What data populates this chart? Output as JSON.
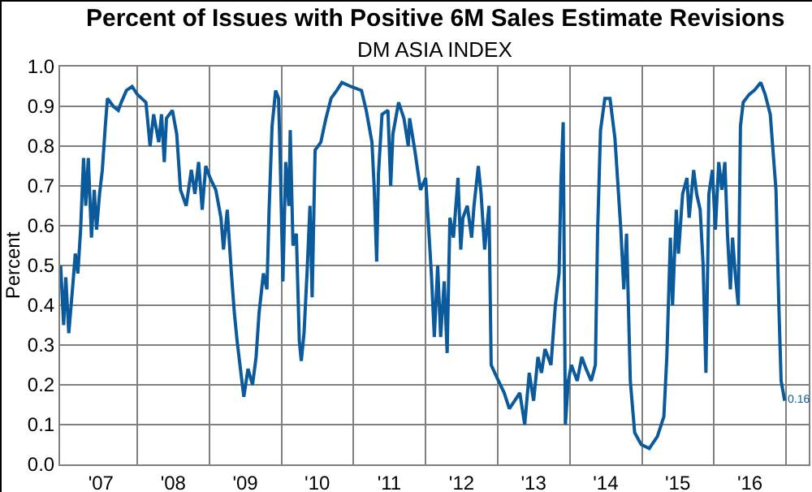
{
  "chart_data": {
    "type": "line",
    "title": "Percent of Issues with Positive 6M Sales Estimate Revisions",
    "subtitle": "DM ASIA INDEX",
    "ylabel": "Percent",
    "x": [
      "2006-12-09",
      "2006-12-24",
      "2007-01-04",
      "2007-01-19",
      "2007-02-10",
      "2007-02-21",
      "2007-03-06",
      "2007-03-20",
      "2007-04-04",
      "2007-04-15",
      "2007-04-28",
      "2007-05-14",
      "2007-05-28",
      "2007-06-09",
      "2007-06-24",
      "2007-07-08",
      "2007-07-23",
      "2007-08-03",
      "2007-09-02",
      "2007-09-27",
      "2007-10-12",
      "2007-11-07",
      "2007-12-06",
      "2008-01-01",
      "2008-02-14",
      "2008-03-06",
      "2008-03-24",
      "2008-04-19",
      "2008-05-03",
      "2008-05-17",
      "2008-05-28",
      "2008-06-27",
      "2008-07-19",
      "2008-08-07",
      "2008-09-05",
      "2008-10-01",
      "2008-10-19",
      "2008-11-07",
      "2008-11-25",
      "2008-12-13",
      "2009-01-04",
      "2009-02-02",
      "2009-02-28",
      "2009-03-13",
      "2009-04-01",
      "2009-04-22",
      "2009-05-07",
      "2009-05-21",
      "2009-06-09",
      "2009-06-24",
      "2009-07-15",
      "2009-08-07",
      "2009-08-25",
      "2009-09-09",
      "2009-10-01",
      "2009-10-19",
      "2009-10-30",
      "2009-11-14",
      "2009-12-02",
      "2009-12-17",
      "2009-12-24",
      "2010-01-08",
      "2010-01-22",
      "2010-02-07",
      "2010-02-14",
      "2010-02-28",
      "2010-03-17",
      "2010-04-01",
      "2010-04-11",
      "2010-04-25",
      "2010-05-10",
      "2010-05-25",
      "2010-06-05",
      "2010-06-20",
      "2010-07-19",
      "2010-08-14",
      "2010-09-09",
      "2010-10-08",
      "2010-11-03",
      "2010-12-17",
      "2011-02-10",
      "2011-03-06",
      "2011-04-04",
      "2011-04-15",
      "2011-04-28",
      "2011-05-07",
      "2011-05-25",
      "2011-06-24",
      "2011-07-08",
      "2011-07-19",
      "2011-08-17",
      "2011-09-13",
      "2011-10-05",
      "2011-10-12",
      "2011-11-07",
      "2011-12-06",
      "2012-01-01",
      "2012-01-30",
      "2012-02-14",
      "2012-03-02",
      "2012-03-17",
      "2012-04-04",
      "2012-04-19",
      "2012-05-03",
      "2012-05-21",
      "2012-06-13",
      "2012-06-27",
      "2012-07-08",
      "2012-07-30",
      "2012-08-21",
      "2012-09-02",
      "2012-09-24",
      "2012-10-08",
      "2012-10-26",
      "2012-11-17",
      "2012-11-28",
      "2013-01-04",
      "2013-02-02",
      "2013-02-28",
      "2013-03-27",
      "2013-04-22",
      "2013-05-17",
      "2013-06-09",
      "2013-07-01",
      "2013-07-23",
      "2013-08-10",
      "2013-08-28",
      "2013-09-27",
      "2013-10-19",
      "2013-11-07",
      "2013-11-17",
      "2013-11-28",
      "2013-12-09",
      "2013-12-24",
      "2014-01-08",
      "2014-02-07",
      "2014-03-02",
      "2014-03-24",
      "2014-04-19",
      "2014-05-10",
      "2014-05-21",
      "2014-06-05",
      "2014-06-27",
      "2014-07-23",
      "2014-08-17",
      "2014-09-16",
      "2014-10-01",
      "2014-10-15",
      "2014-11-03",
      "2014-11-25",
      "2014-12-28",
      "2015-02-07",
      "2015-03-20",
      "2015-04-22",
      "2015-05-07",
      "2015-05-25",
      "2015-06-05",
      "2015-06-24",
      "2015-07-05",
      "2015-07-26",
      "2015-08-17",
      "2015-08-28",
      "2015-09-20",
      "2015-10-05",
      "2015-10-23",
      "2015-11-07",
      "2015-11-21",
      "2015-12-06",
      "2015-12-24",
      "2016-01-08",
      "2016-01-25",
      "2016-02-10",
      "2016-02-25",
      "2016-03-09",
      "2016-03-24",
      "2016-04-04",
      "2016-04-19",
      "2016-05-03",
      "2016-05-14",
      "2016-05-28",
      "2016-06-27",
      "2016-07-23",
      "2016-08-25",
      "2016-09-16",
      "2016-10-12",
      "2016-11-10",
      "2016-11-25",
      "2016-12-06",
      "2016-12-24"
    ],
    "series": [
      {
        "color": "#0a5a9c",
        "values": [
          0.5,
          0.35,
          0.47,
          0.33,
          0.46,
          0.53,
          0.48,
          0.59,
          0.77,
          0.65,
          0.77,
          0.57,
          0.69,
          0.59,
          0.68,
          0.74,
          0.85,
          0.92,
          0.9,
          0.89,
          0.91,
          0.94,
          0.95,
          0.93,
          0.91,
          0.8,
          0.88,
          0.81,
          0.88,
          0.76,
          0.87,
          0.89,
          0.83,
          0.69,
          0.65,
          0.74,
          0.68,
          0.76,
          0.64,
          0.75,
          0.72,
          0.69,
          0.62,
          0.54,
          0.64,
          0.48,
          0.38,
          0.31,
          0.23,
          0.17,
          0.24,
          0.2,
          0.27,
          0.38,
          0.48,
          0.44,
          0.64,
          0.85,
          0.94,
          0.92,
          0.79,
          0.46,
          0.76,
          0.65,
          0.84,
          0.55,
          0.58,
          0.31,
          0.26,
          0.33,
          0.48,
          0.65,
          0.42,
          0.79,
          0.81,
          0.87,
          0.92,
          0.94,
          0.96,
          0.95,
          0.94,
          0.89,
          0.81,
          0.7,
          0.51,
          0.73,
          0.88,
          0.89,
          0.7,
          0.83,
          0.91,
          0.87,
          0.8,
          0.87,
          0.79,
          0.69,
          0.72,
          0.48,
          0.32,
          0.5,
          0.32,
          0.46,
          0.28,
          0.62,
          0.57,
          0.72,
          0.54,
          0.62,
          0.65,
          0.57,
          0.65,
          0.75,
          0.68,
          0.54,
          0.65,
          0.25,
          0.21,
          0.18,
          0.14,
          0.16,
          0.18,
          0.1,
          0.23,
          0.16,
          0.27,
          0.23,
          0.29,
          0.25,
          0.4,
          0.48,
          0.72,
          0.86,
          0.1,
          0.21,
          0.25,
          0.21,
          0.27,
          0.24,
          0.21,
          0.25,
          0.58,
          0.84,
          0.92,
          0.92,
          0.82,
          0.59,
          0.44,
          0.58,
          0.21,
          0.08,
          0.05,
          0.04,
          0.07,
          0.12,
          0.27,
          0.57,
          0.4,
          0.64,
          0.53,
          0.68,
          0.72,
          0.62,
          0.74,
          0.68,
          0.64,
          0.5,
          0.23,
          0.68,
          0.74,
          0.59,
          0.76,
          0.69,
          0.76,
          0.58,
          0.44,
          0.57,
          0.47,
          0.4,
          0.85,
          0.91,
          0.93,
          0.94,
          0.96,
          0.93,
          0.88,
          0.69,
          0.39,
          0.21,
          0.16
        ]
      }
    ],
    "annotations": [
      {
        "text": "0.16",
        "x": "2016-12-24",
        "y": 0.16
      }
    ],
    "xlim": [
      "2006-12-06",
      "2017-04-25"
    ],
    "xticks": [
      {
        "value": "2007-07-01",
        "label": "'07"
      },
      {
        "value": "2008-07-01",
        "label": "'08"
      },
      {
        "value": "2009-07-01",
        "label": "'09"
      },
      {
        "value": "2010-07-01",
        "label": "'10"
      },
      {
        "value": "2011-07-01",
        "label": "'11"
      },
      {
        "value": "2012-07-01",
        "label": "'12"
      },
      {
        "value": "2013-07-01",
        "label": "'13"
      },
      {
        "value": "2014-07-01",
        "label": "'14"
      },
      {
        "value": "2015-07-01",
        "label": "'15"
      },
      {
        "value": "2016-07-01",
        "label": "'16"
      },
      {
        "value": "2008-01-01",
        "label": null
      },
      {
        "value": "2009-01-01",
        "label": null
      },
      {
        "value": "2010-01-01",
        "label": null
      },
      {
        "value": "2011-01-01",
        "label": null
      },
      {
        "value": "2012-01-01",
        "label": null
      },
      {
        "value": "2013-01-01",
        "label": null
      },
      {
        "value": "2014-01-01",
        "label": null
      },
      {
        "value": "2015-01-01",
        "label": null
      },
      {
        "value": "2016-01-01",
        "label": null
      },
      {
        "value": "2017-01-01",
        "label": null
      }
    ],
    "ylim": [
      0,
      1
    ],
    "yticks": [
      {
        "value": 0,
        "label": "0.0"
      },
      0.1,
      0.2,
      0.3,
      0.4,
      0.5,
      0.6,
      0.7,
      0.8,
      0.9,
      {
        "value": 1,
        "label": "1.0"
      }
    ],
    "grid": true
  }
}
